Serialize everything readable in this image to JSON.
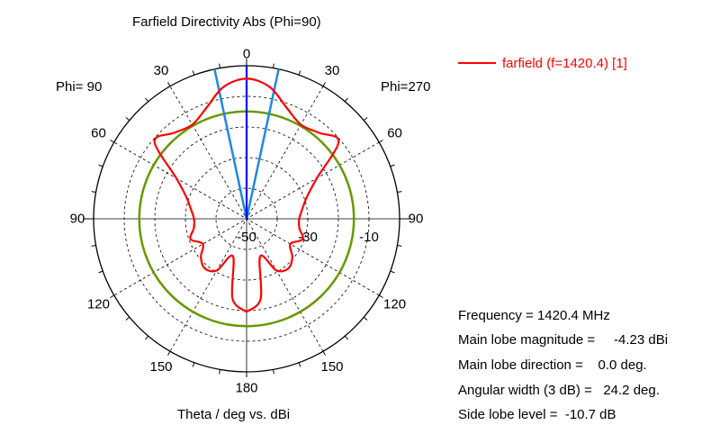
{
  "chart_data": {
    "type": "polar",
    "title": "Farfield Directivity Abs (Phi=90)",
    "xlabel": "Theta / deg vs. dBi",
    "left_half_label": "Phi= 90",
    "right_half_label": "Phi=270",
    "angle_ticks": [
      {
        "angle": 0,
        "label": "0"
      },
      {
        "angle": 30,
        "label": "30"
      },
      {
        "angle": -30,
        "label": "30"
      },
      {
        "angle": 60,
        "label": "60"
      },
      {
        "angle": -60,
        "label": "60"
      },
      {
        "angle": 90,
        "label": "90"
      },
      {
        "angle": -90,
        "label": "90"
      },
      {
        "angle": 120,
        "label": "120"
      },
      {
        "angle": -120,
        "label": "120"
      },
      {
        "angle": 150,
        "label": "150"
      },
      {
        "angle": -150,
        "label": "150"
      },
      {
        "angle": 180,
        "label": "180"
      }
    ],
    "radial_range_dBi": [
      -50,
      0
    ],
    "radial_ticks": [
      {
        "value": -50,
        "label": "-50"
      },
      {
        "value": -30,
        "label": "-30"
      },
      {
        "value": -10,
        "label": "-10"
      }
    ],
    "grid": true,
    "legend_position": "top-right",
    "series": [
      {
        "name": "farfield (f=1420.4) [1]",
        "color": "#ff0000",
        "theta_deg": [
          -180,
          -170,
          -160,
          -150,
          -140,
          -130,
          -120,
          -110,
          -100,
          -90,
          -80,
          -70,
          -60,
          -50,
          -40,
          -30,
          -20,
          -10,
          0,
          10,
          20,
          30,
          40,
          50,
          60,
          70,
          80,
          90,
          100,
          110,
          120,
          130,
          140,
          150,
          160,
          170,
          180
        ],
        "dBi": [
          -19.6,
          -23.5,
          -37,
          -30.5,
          -28.8,
          -30.5,
          -33.5,
          -30.5,
          -32.5,
          -32.8,
          -31.5,
          -29,
          -23.5,
          -10.7,
          -13.3,
          -14.5,
          -11.5,
          -6.3,
          -4.23,
          -6.3,
          -11.5,
          -14.5,
          -13.3,
          -10.7,
          -23.5,
          -29,
          -31.5,
          -32.8,
          -32.5,
          -30.5,
          -33.5,
          -30.5,
          -28.8,
          -30.5,
          -37,
          -23.5,
          -19.6
        ]
      }
    ],
    "markers": {
      "main_lobe_direction_deg": 0.0,
      "beamwidth_edges_deg": [
        -12.1,
        12.1
      ],
      "side_lobe_circle_dBi": -14.93
    }
  },
  "info": {
    "frequency": "Frequency = 1420.4 MHz",
    "main_lobe_magnitude": "Main lobe magnitude =     -4.23 dBi",
    "main_lobe_direction": "Main lobe direction =    0.0 deg.",
    "angular_width": "Angular width (3 dB) =   24.2 deg.",
    "side_lobe_level": "Side lobe level =  -10.7 dB"
  },
  "colors": {
    "curve": "#ff0000",
    "main_lobe": "#0000ff",
    "beamwidth": "#1e88e5",
    "side_lobe": "#669900",
    "grid": "#000000"
  }
}
